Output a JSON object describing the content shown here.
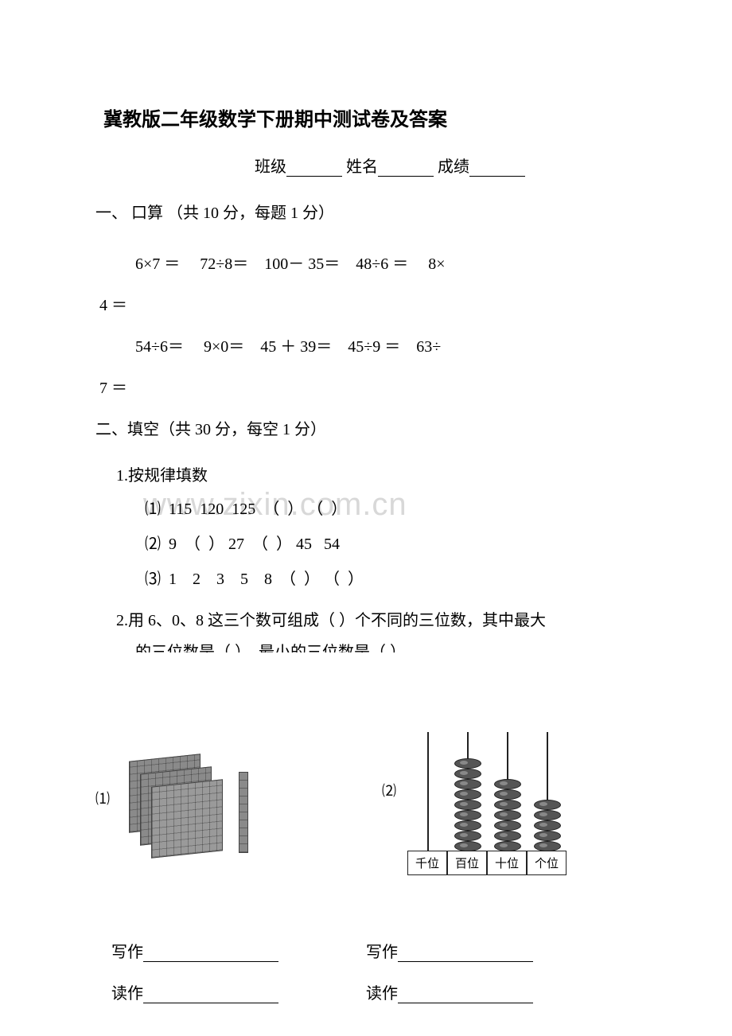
{
  "title": "冀教版二年级数学下册期中测试卷及答案",
  "header": {
    "class_label": "班级",
    "name_label": "姓名",
    "score_label": "成绩"
  },
  "section1": {
    "head": "一、 口算 （共 10 分，每题 1 分）",
    "line1": "6×7 ＝     72÷8＝    100－ 35＝    48÷6 ＝     8×",
    "line1_wrap": " 4 ＝",
    "line2": "54÷6＝     9×0＝    45 ＋ 39＝    45÷9 ＝    63÷",
    "line2_wrap": " 7 ＝"
  },
  "section2": {
    "head": "二、填空（共 30 分，每空 1 分）",
    "q1": "1.按规律填数",
    "q1_sub1_label": "⑴",
    "q1_sub1": "  115  120  125  （  ） （  ）",
    "q1_sub2_label": "⑵",
    "q1_sub2": "  9  （  ） 27  （  ） 45   54",
    "q1_sub3_label": "⑶",
    "q1_sub3": "  1    2    3    5    8  （  ） （  ）",
    "q2": "2.用 6、0、8 这三个数可组成（  ）个不同的三位数，其中最大",
    "q2_wrap": "的三位数是（    ），最小的三位数是（    ）"
  },
  "figures": {
    "label1": "⑴",
    "label2": "⑵",
    "abacus_cols": [
      "千位",
      "百位",
      "十位",
      "个位"
    ],
    "bead_counts": {
      "thousand": 0,
      "hundred": 9,
      "ten": 7,
      "one": 5
    },
    "bead_color": "#555555",
    "rod_color": "#222222"
  },
  "writes": {
    "write": "写作",
    "read": "读作"
  },
  "watermark": "www.zixin.com.cn"
}
